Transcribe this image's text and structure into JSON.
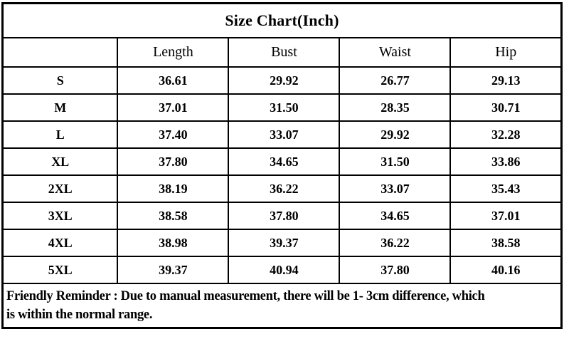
{
  "title": "Size Chart(Inch)",
  "table": {
    "headers": [
      "",
      "Length",
      "Bust",
      "Waist",
      "Hip"
    ],
    "rows": [
      {
        "size": "S",
        "length": "36.61",
        "bust": "29.92",
        "waist": "26.77",
        "hip": "29.13"
      },
      {
        "size": "M",
        "length": "37.01",
        "bust": "31.50",
        "waist": "28.35",
        "hip": "30.71"
      },
      {
        "size": "L",
        "length": "37.40",
        "bust": "33.07",
        "waist": "29.92",
        "hip": "32.28"
      },
      {
        "size": "XL",
        "length": "37.80",
        "bust": "34.65",
        "waist": "31.50",
        "hip": "33.86"
      },
      {
        "size": "2XL",
        "length": "38.19",
        "bust": "36.22",
        "waist": "33.07",
        "hip": "35.43"
      },
      {
        "size": "3XL",
        "length": "38.58",
        "bust": "37.80",
        "waist": "34.65",
        "hip": "37.01"
      },
      {
        "size": "4XL",
        "length": "38.98",
        "bust": "39.37",
        "waist": "36.22",
        "hip": "38.58"
      },
      {
        "size": "5XL",
        "length": "39.37",
        "bust": "40.94",
        "waist": "37.80",
        "hip": "40.16"
      }
    ]
  },
  "footer": {
    "line1": "Friendly Reminder : Due to manual measurement, there will be 1- 3cm difference, which",
    "line2": "is within the normal range.",
    "full_text": "Friendly Reminder : Due to manual measurement, there will be 1- 3cm difference, which is within the normal range."
  },
  "colors": {
    "border": "#000000",
    "background": "#ffffff",
    "text": "#000000"
  }
}
